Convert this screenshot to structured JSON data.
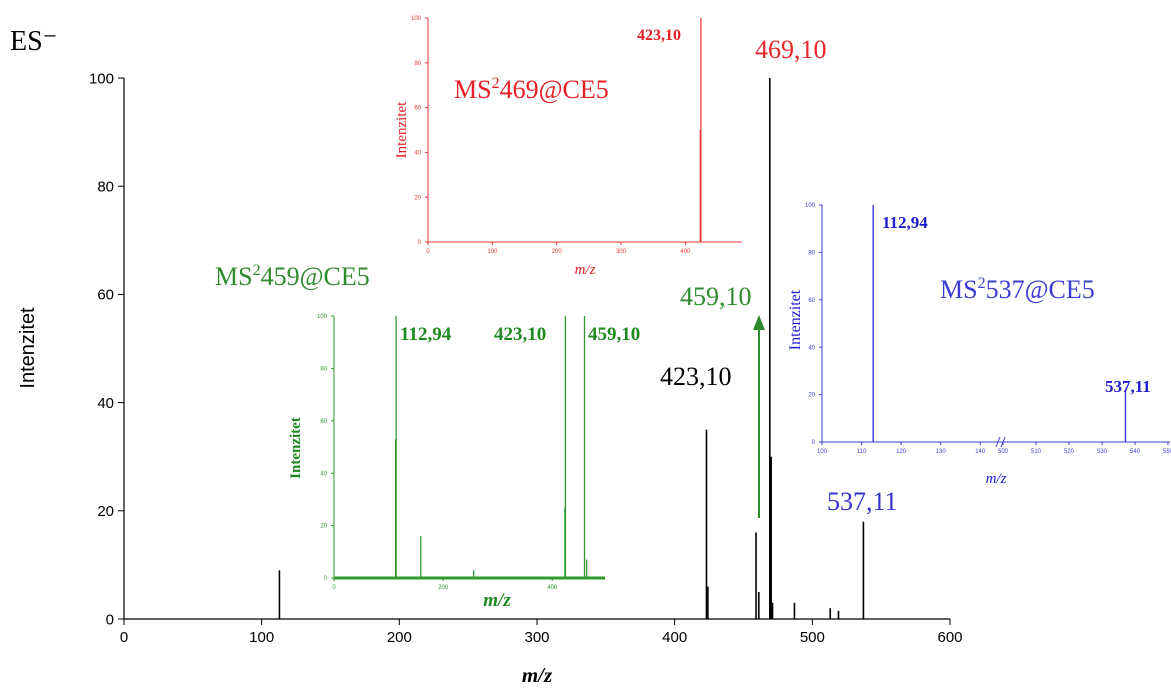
{
  "chart_data": [
    {
      "type": "line",
      "id": "main",
      "ion_mode_label": "ES⁻",
      "xlabel": "m/z",
      "ylabel": "Intenzitet",
      "xlim": [
        0,
        600
      ],
      "ylim": [
        0,
        100
      ],
      "xticks": [
        "0",
        "100",
        "200",
        "300",
        "400",
        "500",
        "600"
      ],
      "yticks": [
        "0",
        "20",
        "40",
        "60",
        "80",
        "100"
      ],
      "color": "#000000",
      "peaks": [
        {
          "x": 112.9,
          "y": 9
        },
        {
          "x": 423.1,
          "y": 35
        },
        {
          "x": 424.1,
          "y": 6
        },
        {
          "x": 459.1,
          "y": 16
        },
        {
          "x": 461.1,
          "y": 5
        },
        {
          "x": 469.1,
          "y": 100
        },
        {
          "x": 470.1,
          "y": 30
        },
        {
          "x": 471.1,
          "y": 3
        },
        {
          "x": 487.0,
          "y": 3
        },
        {
          "x": 513.0,
          "y": 2
        },
        {
          "x": 519.0,
          "y": 1.5
        },
        {
          "x": 537.1,
          "y": 18
        }
      ],
      "annotations": [
        {
          "text": "469,10",
          "x": 469.1,
          "color": "#e8262b"
        },
        {
          "text": "459,10",
          "x": 459.1,
          "color": "#2e8b2e"
        },
        {
          "text": "423,10",
          "x": 423.1,
          "color": "#000000"
        },
        {
          "text": "537,11",
          "x": 537.1,
          "color": "#3333cc"
        }
      ]
    },
    {
      "type": "line",
      "id": "inset-469",
      "title_prefix": "MS",
      "title_sup": "2",
      "title_rest": "469@CE5",
      "xlabel": "m/z",
      "ylabel": "Intenzitet",
      "xlim": [
        0,
        460
      ],
      "ylim": [
        0,
        100
      ],
      "xticks": [
        "0",
        "100",
        "200",
        "300",
        "400"
      ],
      "yticks": [
        "0",
        "20",
        "40",
        "60",
        "80",
        "100"
      ],
      "color": "#ee3333",
      "peaks": [
        {
          "x": 423.1,
          "y": 50
        },
        {
          "x": 424.1,
          "y": 100
        }
      ],
      "annotations": [
        {
          "text": "423,10",
          "x": 423.1,
          "color": "#e81f26"
        }
      ]
    },
    {
      "type": "line",
      "id": "inset-459",
      "title_prefix": "MS",
      "title_sup": "2",
      "title_rest": "459@CE5",
      "xlabel": "m/z",
      "ylabel": "Intenzitet",
      "xlim": [
        0,
        460
      ],
      "ylim": [
        0,
        100
      ],
      "xticks": [
        "0",
        "200",
        "400"
      ],
      "yticks": [
        "0",
        "20",
        "40",
        "60",
        "80",
        "100"
      ],
      "color": "#2e9a2e",
      "peaks": [
        {
          "x": 112.9,
          "y": 53
        },
        {
          "x": 113.9,
          "y": 100
        },
        {
          "x": 159.0,
          "y": 16
        },
        {
          "x": 256.0,
          "y": 3
        },
        {
          "x": 423.1,
          "y": 27
        },
        {
          "x": 424.1,
          "y": 100
        },
        {
          "x": 459.1,
          "y": 100
        },
        {
          "x": 463.0,
          "y": 7
        }
      ],
      "annotations": [
        {
          "text": "112,94",
          "x": 112.9,
          "color": "#1f8a1f"
        },
        {
          "text": "423,10",
          "x": 423.1,
          "color": "#1f8a1f"
        },
        {
          "text": "459,10",
          "x": 459.1,
          "color": "#1f8a1f"
        }
      ]
    },
    {
      "type": "line",
      "id": "inset-537",
      "title_prefix": "MS",
      "title_sup": "2",
      "title_rest": "537@CE5",
      "xlabel": "m/z",
      "ylabel": "Intenzitet",
      "xlim": [
        100,
        550
      ],
      "ylim": [
        0,
        100
      ],
      "xticks": [
        "100",
        "110",
        "120",
        "130",
        "140",
        "500",
        "510",
        "520",
        "530",
        "540",
        "550"
      ],
      "yticks": [
        "0",
        "20",
        "40",
        "60",
        "80",
        "100"
      ],
      "color": "#3b3bd6",
      "peaks": [
        {
          "x": 112.94,
          "y": 100
        },
        {
          "x": 537.11,
          "y": 22
        }
      ],
      "annotations": [
        {
          "text": "112,94",
          "x": 112.94,
          "color": "#1b1bd0"
        },
        {
          "text": "537,11",
          "x": 537.11,
          "color": "#1b1bd0"
        }
      ]
    }
  ]
}
